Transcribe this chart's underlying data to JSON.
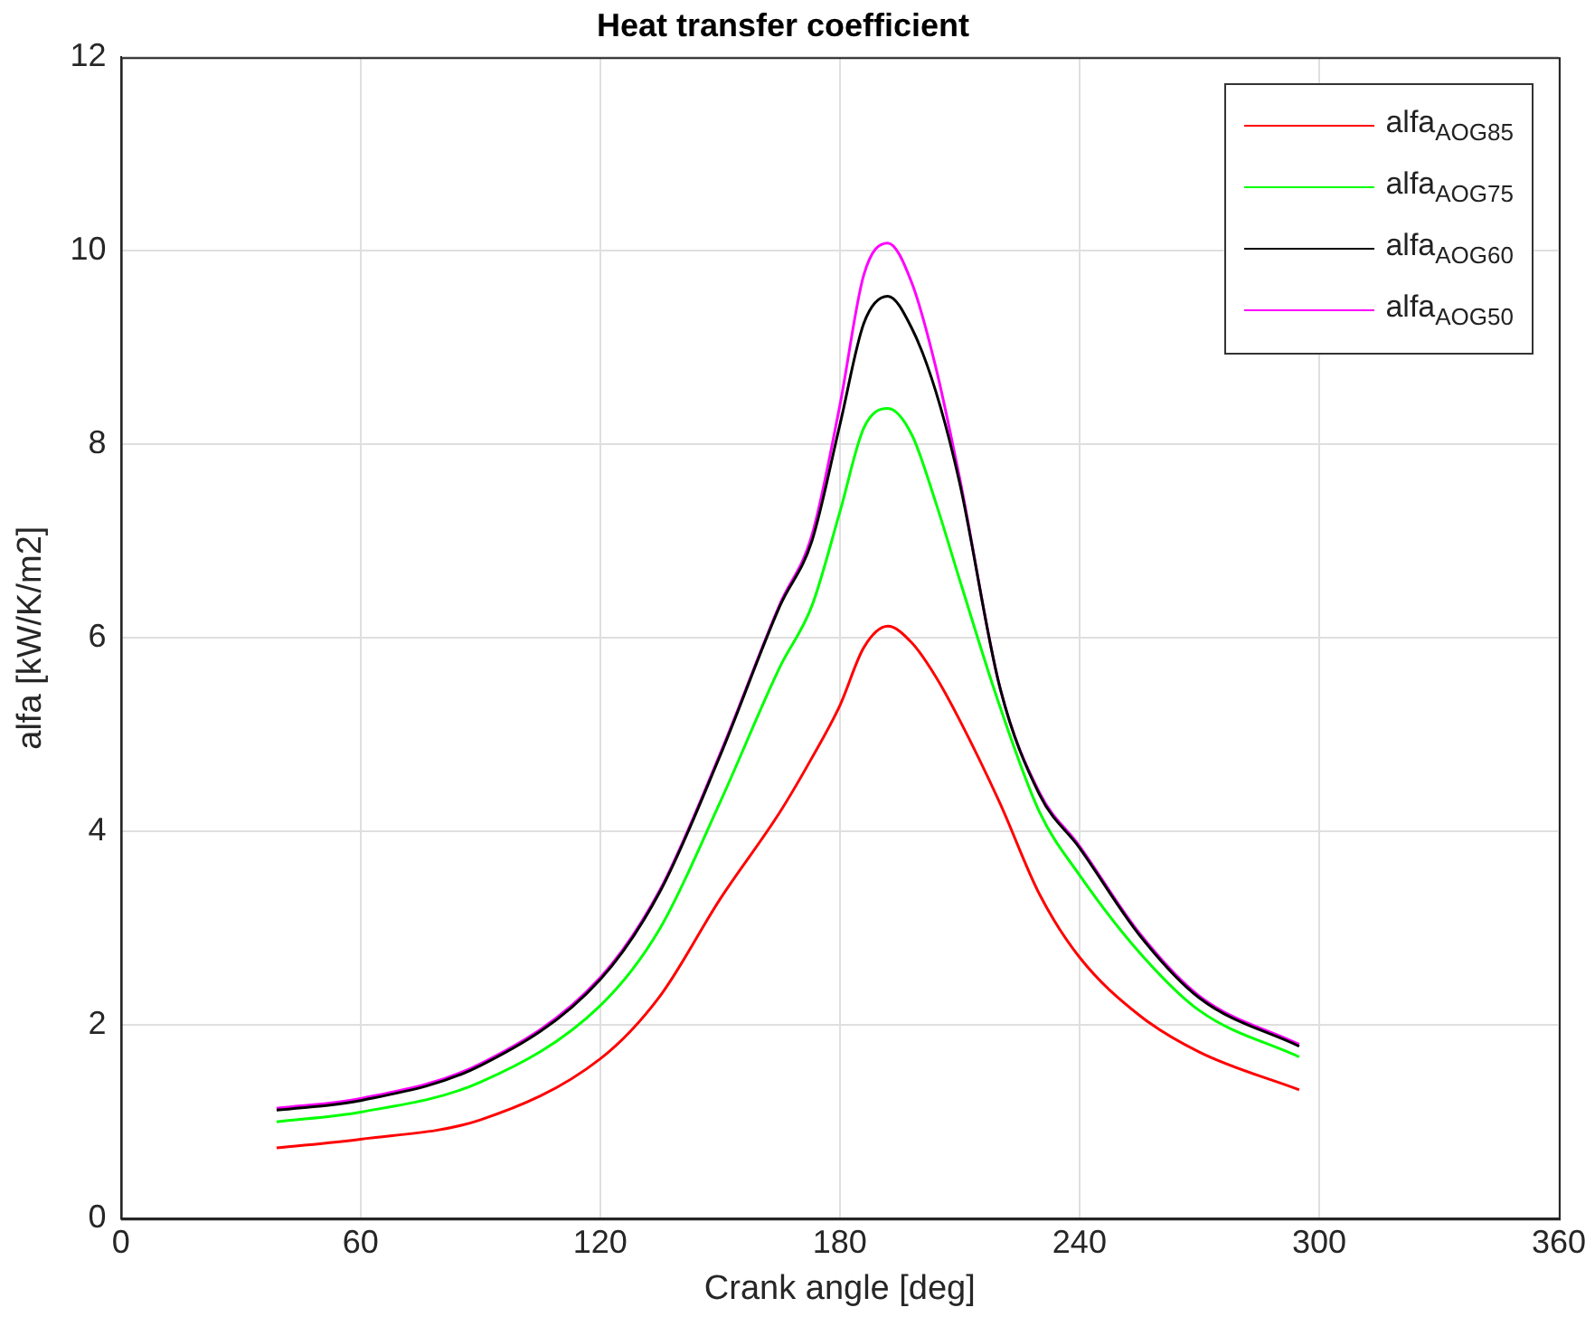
{
  "chart_data": {
    "type": "line",
    "title": "Heat transfer coefficient",
    "xlabel": "Crank angle [deg]",
    "ylabel": "alfa [kW/K/m2]",
    "x": [
      39,
      60,
      90,
      120,
      135,
      150,
      165,
      173,
      180,
      186,
      192,
      198,
      204,
      210,
      220,
      230,
      240,
      255,
      270,
      295
    ],
    "series": [
      {
        "name": "alfa$_{AOG85}$",
        "color": "#ff0000",
        "values": [
          0.73,
          0.82,
          1.02,
          1.65,
          2.3,
          3.3,
          4.2,
          4.76,
          5.3,
          5.9,
          6.12,
          5.95,
          5.6,
          5.15,
          4.3,
          3.35,
          2.7,
          2.1,
          1.72,
          1.33
        ]
      },
      {
        "name": "alfa$_{AOG75}$",
        "color": "#00ff00",
        "values": [
          1.0,
          1.1,
          1.41,
          2.2,
          3.0,
          4.3,
          5.7,
          6.33,
          7.3,
          8.17,
          8.37,
          8.1,
          7.4,
          6.6,
          5.3,
          4.2,
          3.55,
          2.75,
          2.15,
          1.67
        ]
      },
      {
        "name": "alfa$_{AOG60}$",
        "color": "#000000",
        "values": [
          1.12,
          1.22,
          1.58,
          2.47,
          3.38,
          4.78,
          6.33,
          7.0,
          8.2,
          9.25,
          9.53,
          9.2,
          8.55,
          7.6,
          5.5,
          4.38,
          3.83,
          2.93,
          2.28,
          1.78
        ]
      },
      {
        "name": "alfa$_{AOG50}$",
        "color": "#ff00ff",
        "values": [
          1.14,
          1.24,
          1.6,
          2.49,
          3.4,
          4.8,
          6.35,
          7.06,
          8.4,
          9.75,
          10.08,
          9.67,
          8.8,
          7.65,
          5.5,
          4.4,
          3.85,
          2.95,
          2.3,
          1.8
        ]
      }
    ],
    "xlim": [
      0,
      360
    ],
    "xticks": [
      0,
      60,
      120,
      180,
      240,
      300,
      360
    ],
    "ylim": [
      0,
      12
    ],
    "yticks": [
      0,
      2,
      4,
      6,
      8,
      10,
      12
    ],
    "grid": true,
    "legend": "top right",
    "line_style": "solid",
    "marker": "none"
  }
}
